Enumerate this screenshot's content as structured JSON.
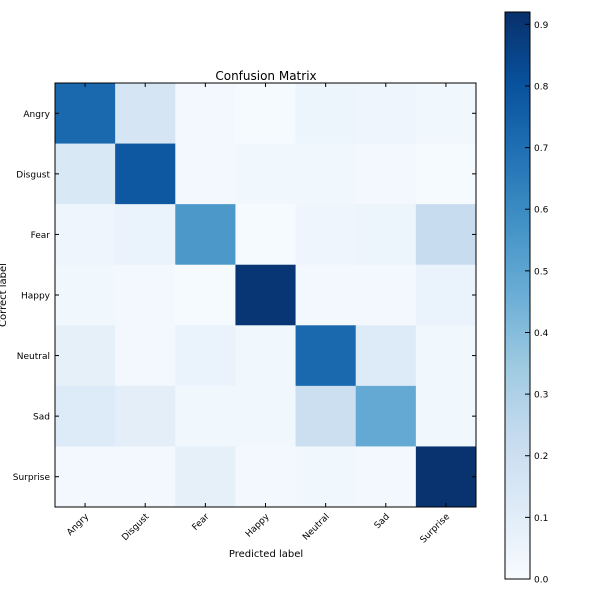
{
  "chart_data": {
    "type": "heatmap",
    "title": "Confusion Matrix",
    "xlabel": "Predicted label",
    "ylabel": "Correct label",
    "row_labels": [
      "Angry",
      "Disgust",
      "Fear",
      "Happy",
      "Neutral",
      "Sad",
      "Surprise"
    ],
    "col_labels": [
      "Angry",
      "Disgust",
      "Fear",
      "Happy",
      "Neutral",
      "Sad",
      "Surprise"
    ],
    "values": [
      [
        0.72,
        0.16,
        0.02,
        0.01,
        0.05,
        0.04,
        0.03
      ],
      [
        0.14,
        0.78,
        0.02,
        0.03,
        0.03,
        0.02,
        0.01
      ],
      [
        0.04,
        0.06,
        0.55,
        0.01,
        0.04,
        0.05,
        0.22
      ],
      [
        0.03,
        0.02,
        0.01,
        0.9,
        0.02,
        0.02,
        0.06
      ],
      [
        0.08,
        0.02,
        0.06,
        0.03,
        0.72,
        0.12,
        0.03
      ],
      [
        0.12,
        0.09,
        0.03,
        0.03,
        0.2,
        0.48,
        0.03
      ],
      [
        0.02,
        0.02,
        0.08,
        0.02,
        0.03,
        0.02,
        0.91
      ]
    ],
    "colormap": "Blues",
    "colorbar": {
      "min": 0.0,
      "max": 0.92,
      "ticks": [
        0.0,
        0.1,
        0.2,
        0.3,
        0.4,
        0.5,
        0.6,
        0.7,
        0.8,
        0.9
      ],
      "tick_labels": [
        "0.0",
        "0.1",
        "0.2",
        "0.3",
        "0.4",
        "0.5",
        "0.6",
        "0.7",
        "0.8",
        "0.9"
      ]
    },
    "grid": false,
    "x_tick_rotation": 45
  }
}
